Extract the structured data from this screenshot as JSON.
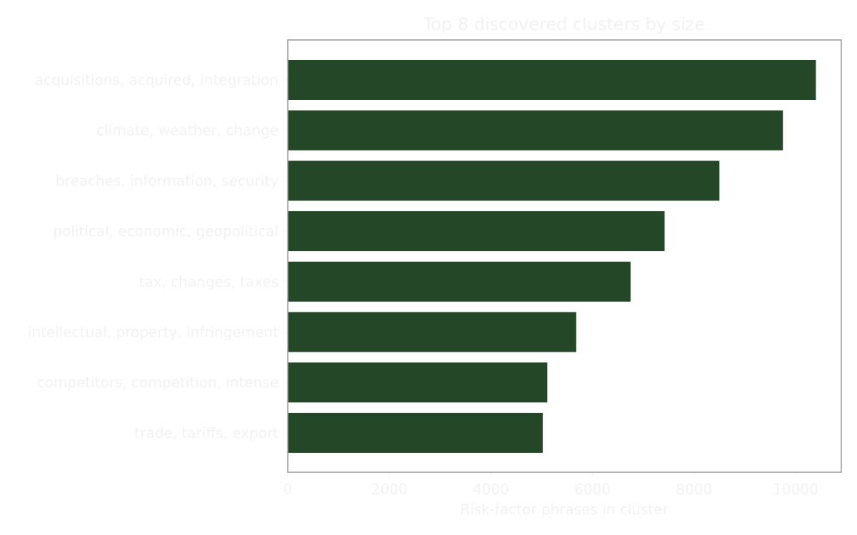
{
  "chart_data": {
    "type": "bar",
    "orientation": "horizontal",
    "title": "Top 8 discovered clusters by size",
    "xlabel": "Risk-factor phrases in cluster",
    "ylabel": "",
    "categories": [
      "acquisitions, acquired, integration",
      "climate, weather, change",
      "breaches, information, security",
      "political, economic, geopolitical",
      "tax, changes, taxes",
      "intellectual, property, infringement",
      "competitors, competition, intense",
      "trade, tariffs, export"
    ],
    "values": [
      10400,
      9750,
      8500,
      7420,
      6750,
      5680,
      5110,
      5020
    ],
    "xlim": [
      0,
      10900
    ],
    "xticks": [
      0,
      2000,
      4000,
      6000,
      8000,
      10000
    ],
    "xtick_labels": [
      "0",
      "2000",
      "4000",
      "6000",
      "8000",
      "10000"
    ],
    "grid": false,
    "legend": "none",
    "colors": {
      "bar": "#234727",
      "text": "#f2f2f2",
      "frame": "#9a9a9a",
      "background": "#ffffff"
    }
  }
}
